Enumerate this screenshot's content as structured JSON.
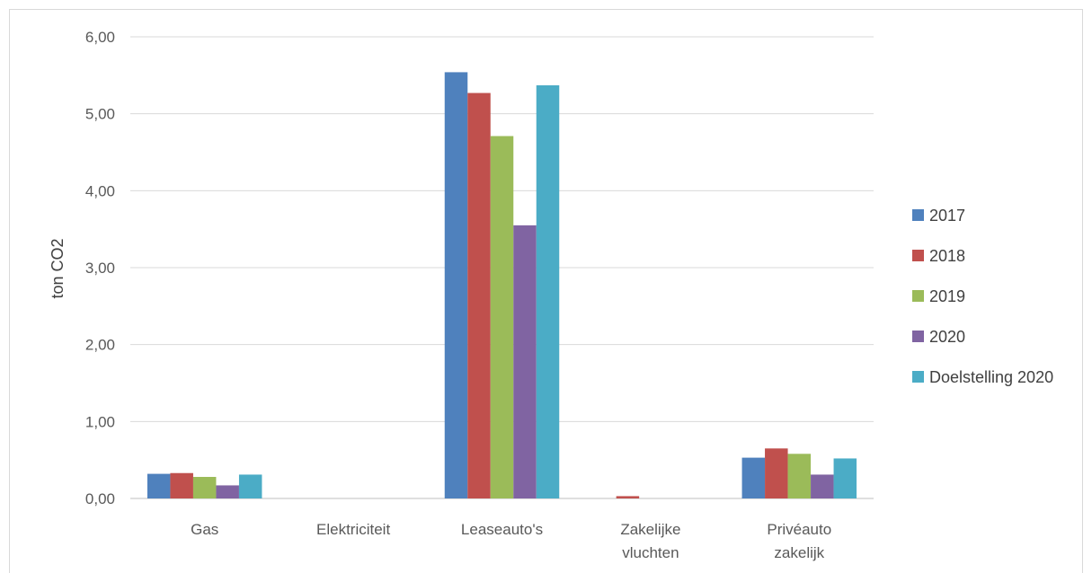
{
  "chart_data": {
    "type": "bar",
    "title": "",
    "xlabel": "",
    "ylabel": "ton CO2",
    "ylim": [
      0,
      6
    ],
    "y_ticks": [
      "0,00",
      "1,00",
      "2,00",
      "3,00",
      "4,00",
      "5,00",
      "6,00"
    ],
    "categories": [
      [
        "Gas"
      ],
      [
        "Elektriciteit"
      ],
      [
        "Leaseauto's"
      ],
      [
        "Zakelijke",
        "vluchten"
      ],
      [
        "Privéauto",
        "zakelijk"
      ]
    ],
    "series": [
      {
        "name": "2017",
        "color": "#4f81bd",
        "values": [
          0.32,
          0,
          5.54,
          0,
          0.53
        ]
      },
      {
        "name": "2018",
        "color": "#c0504d",
        "values": [
          0.33,
          0,
          5.27,
          0.03,
          0.65
        ]
      },
      {
        "name": "2019",
        "color": "#9bbb59",
        "values": [
          0.28,
          0,
          4.71,
          0,
          0.58
        ]
      },
      {
        "name": "2020",
        "color": "#8064a2",
        "values": [
          0.17,
          0,
          3.55,
          0,
          0.31
        ]
      },
      {
        "name": "Doelstelling 2020",
        "color": "#4bacc6",
        "values": [
          0.31,
          0,
          5.37,
          0,
          0.52
        ]
      }
    ],
    "grid": true,
    "legend_position": "right"
  }
}
